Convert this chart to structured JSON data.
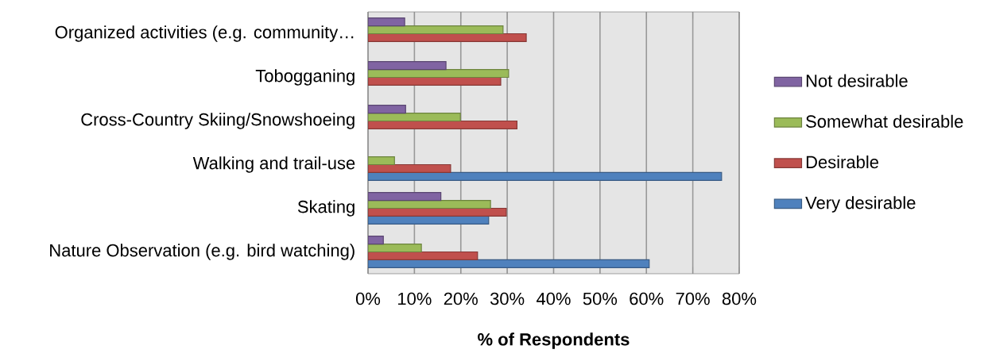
{
  "chart_data": {
    "type": "bar",
    "orientation": "horizontal",
    "xlabel": "% of Respondents",
    "categories": [
      "Organized activities (e.g. community…",
      "Tobogganing",
      "Cross-Country Skiing/Snowshoeing",
      "Walking and trail-use",
      "Skating",
      "Nature Observation (e.g. bird watching)"
    ],
    "series": [
      {
        "name": "Very desirable",
        "color": "#4f81bd",
        "values": [
          null,
          null,
          null,
          76.2,
          26.0,
          60.6
        ]
      },
      {
        "name": "Desirable",
        "color": "#c0504d",
        "values": [
          34.1,
          28.6,
          32.1,
          17.8,
          29.8,
          23.6
        ]
      },
      {
        "name": "Somewhat desirable",
        "color": "#9bbb59",
        "values": [
          29.1,
          30.3,
          19.9,
          5.7,
          26.4,
          11.5
        ]
      },
      {
        "name": "Not desirable",
        "color": "#8064a2",
        "values": [
          7.9,
          16.8,
          8.1,
          null,
          15.7,
          3.3
        ]
      }
    ],
    "xlim": [
      0,
      80
    ],
    "xticks": [
      {
        "value": 0,
        "label": "0%"
      },
      {
        "value": 10,
        "label": "10%"
      },
      {
        "value": 20,
        "label": "20%"
      },
      {
        "value": 30,
        "label": "30%"
      },
      {
        "value": 40,
        "label": "40%"
      },
      {
        "value": 50,
        "label": "50%"
      },
      {
        "value": 60,
        "label": "60%"
      },
      {
        "value": 70,
        "label": "70%"
      },
      {
        "value": 80,
        "label": "80%"
      }
    ],
    "grid": "x",
    "legend": "right"
  }
}
